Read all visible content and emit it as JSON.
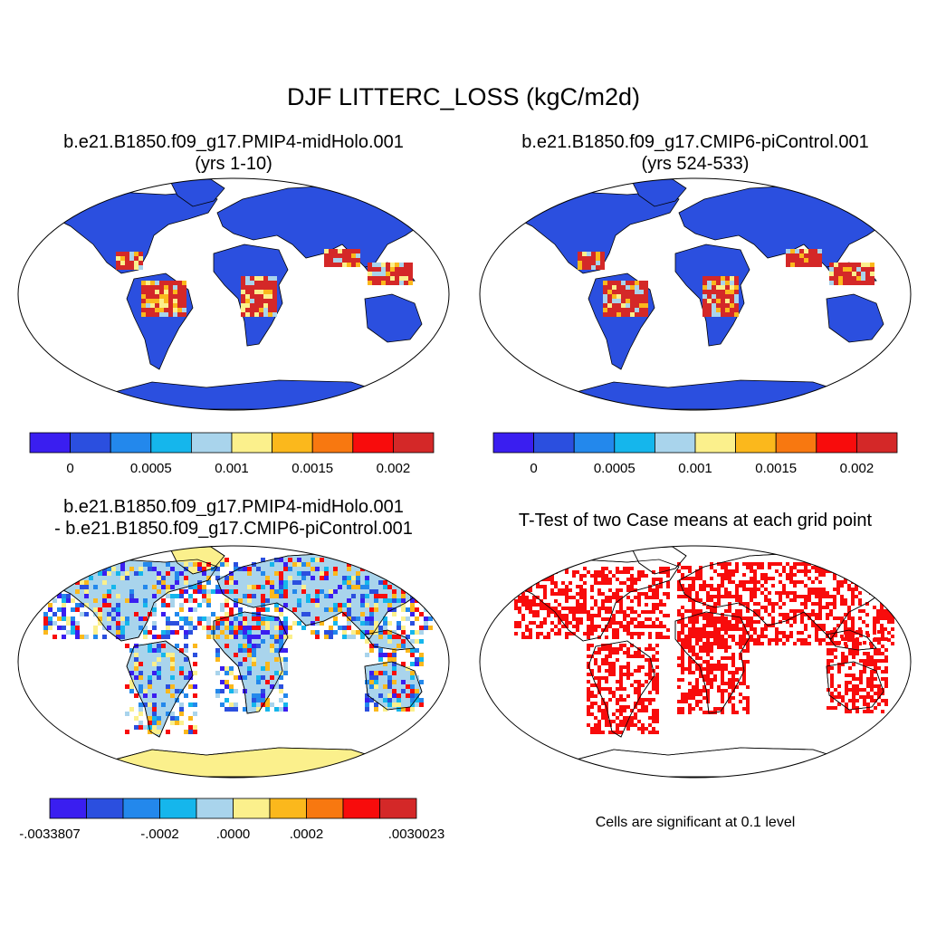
{
  "title": "DJF LITTERC_LOSS (kgC/m2d)",
  "panels": [
    {
      "title_line1": "b.e21.B1850.f09_g17.PMIP4-midHolo.001",
      "title_line2": "(yrs 1-10)"
    },
    {
      "title_line1": "b.e21.B1850.f09_g17.CMIP6-piControl.001",
      "title_line2": "(yrs 524-533)"
    },
    {
      "title_line1": "b.e21.B1850.f09_g17.PMIP4-midHolo.001",
      "title_line2": "- b.e21.B1850.f09_g17.CMIP6-piControl.001"
    },
    {
      "title_line1": "T-Test of two Case means at each grid point",
      "note": "Cells are significant at 0.1 level"
    }
  ],
  "chart_data": [
    {
      "type": "heatmap",
      "projection": "Robinson",
      "title": "b.e21.B1850.f09_g17.PMIP4-midHolo.001 (yrs 1-10)",
      "variable": "LITTERC_LOSS",
      "units": "kgC/m2d",
      "season": "DJF",
      "colorbar": {
        "colors": [
          "#3a1ef0",
          "#2b4fdf",
          "#2388ec",
          "#15b6ec",
          "#a9d4ec",
          "#fbf08c",
          "#fbb81c",
          "#f87810",
          "#f80c0c",
          "#d42828"
        ],
        "boundaries": [
          null,
          null,
          null,
          null,
          null,
          null,
          null,
          null,
          null,
          null,
          null
        ],
        "tick_labels": [
          "0",
          "0.0005",
          "0.001",
          "0.0015",
          "0.002"
        ],
        "tick_positions": [
          0.0,
          0.0005,
          0.001,
          0.0015,
          0.002
        ],
        "range": [
          -0.00025,
          0.00225
        ]
      }
    },
    {
      "type": "heatmap",
      "projection": "Robinson",
      "title": "b.e21.B1850.f09_g17.CMIP6-piControl.001 (yrs 524-533)",
      "variable": "LITTERC_LOSS",
      "units": "kgC/m2d",
      "season": "DJF",
      "colorbar": {
        "colors": [
          "#3a1ef0",
          "#2b4fdf",
          "#2388ec",
          "#15b6ec",
          "#a9d4ec",
          "#fbf08c",
          "#fbb81c",
          "#f87810",
          "#f80c0c",
          "#d42828"
        ],
        "tick_labels": [
          "0",
          "0.0005",
          "0.001",
          "0.0015",
          "0.002"
        ],
        "tick_positions": [
          0.0,
          0.0005,
          0.001,
          0.0015,
          0.002
        ],
        "range": [
          -0.00025,
          0.00225
        ]
      }
    },
    {
      "type": "heatmap",
      "projection": "Robinson",
      "title": "b.e21.B1850.f09_g17.PMIP4-midHolo.001 - b.e21.B1850.f09_g17.CMIP6-piControl.001",
      "variable": "LITTERC_LOSS difference",
      "units": "kgC/m2d",
      "colorbar": {
        "colors": [
          "#3a1ef0",
          "#2b4fdf",
          "#2388ec",
          "#15b6ec",
          "#a9d4ec",
          "#fbf08c",
          "#fbb81c",
          "#f87810",
          "#f80c0c",
          "#d42828"
        ],
        "tick_labels": [
          "-.0033807",
          "-.0002",
          ".0000",
          ".0002",
          ".0030023"
        ],
        "min": -0.0033807,
        "max": 0.0030023
      }
    },
    {
      "type": "heatmap",
      "projection": "Robinson",
      "title": "T-Test of two Case means at each grid point",
      "significance_level": 0.1,
      "significant_color": "#f80c0c",
      "note": "Cells are significant at 0.1 level"
    }
  ],
  "colors": {
    "ocean": "#ffffff",
    "coast": "#000000",
    "low": "#2b4fdf",
    "high": "#d42828",
    "neutral_diff": "#a9d4ec",
    "positive_diff": "#fbf08c",
    "significant": "#f80c0c"
  }
}
